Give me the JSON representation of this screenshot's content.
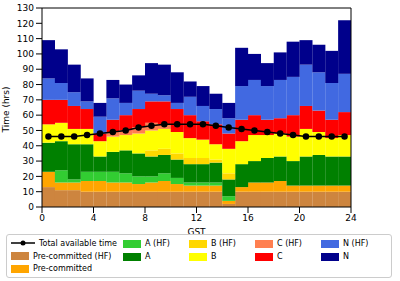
{
  "chart_data": {
    "type": "bar",
    "stacked": true,
    "x_label": "GST",
    "y_label": "Time (hrs)",
    "xlim": [
      0,
      24
    ],
    "xticks": [
      0,
      4,
      8,
      12,
      16,
      20,
      24
    ],
    "ylim": [
      0,
      130
    ],
    "yticks": [
      0,
      10,
      20,
      30,
      40,
      50,
      60,
      70,
      80,
      90,
      100,
      110,
      120,
      130
    ],
    "grid": false,
    "legend": "bottom",
    "x": [
      0.5,
      1.5,
      2.5,
      3.5,
      4.5,
      5.5,
      6.5,
      7.5,
      8.5,
      9.5,
      10.5,
      11.5,
      12.5,
      13.5,
      14.5,
      15.5,
      16.5,
      17.5,
      18.5,
      19.5,
      20.5,
      21.5,
      22.5,
      23.5
    ],
    "series": [
      {
        "name": "Total available time",
        "type": "line",
        "marker": "circle",
        "color": "#000000",
        "values": [
          46,
          46,
          46,
          47,
          48,
          49,
          50,
          52,
          53,
          54,
          54,
          54,
          54,
          53,
          52,
          51,
          50,
          49,
          48,
          47,
          46,
          46,
          46,
          46
        ]
      },
      {
        "name": "Pre-committed (HF)",
        "type": "bar",
        "color": "#cd853f",
        "values": [
          13,
          11,
          11,
          10,
          10,
          10,
          10,
          10,
          10,
          10,
          10,
          10,
          10,
          10,
          2,
          10,
          10,
          10,
          10,
          10,
          10,
          10,
          10,
          10
        ]
      },
      {
        "name": "Pre-committed",
        "type": "bar",
        "color": "#ffa500",
        "values": [
          10,
          5,
          5,
          7,
          7,
          6,
          6,
          5,
          6,
          7,
          5,
          4,
          4,
          4,
          2,
          3,
          6,
          6,
          7,
          4,
          4,
          4,
          4,
          4
        ]
      },
      {
        "name": "A (HF)",
        "type": "bar",
        "color": "#32cd32",
        "values": [
          0,
          8,
          2,
          6,
          6,
          7,
          6,
          5,
          4,
          5,
          4,
          2,
          2,
          2,
          3,
          0,
          0,
          0,
          0,
          0,
          0,
          0,
          0,
          0
        ]
      },
      {
        "name": "A",
        "type": "bar",
        "color": "#008000",
        "values": [
          19,
          19,
          23,
          18,
          10,
          13,
          15,
          15,
          13,
          12,
          12,
          12,
          12,
          13,
          11,
          15,
          14,
          16,
          16,
          16,
          19,
          20,
          19,
          19
        ]
      },
      {
        "name": "B (HF)",
        "type": "bar",
        "color": "#ffd700",
        "values": [
          0,
          0,
          0,
          0,
          0,
          0,
          0,
          0,
          4,
          4,
          4,
          4,
          4,
          2,
          4,
          0,
          0,
          0,
          0,
          0,
          0,
          0,
          0,
          0
        ]
      },
      {
        "name": "B",
        "type": "bar",
        "color": "#ffff00",
        "values": [
          12,
          12,
          10,
          10,
          10,
          10,
          10,
          13,
          13,
          13,
          14,
          13,
          12,
          10,
          16,
          15,
          17,
          15,
          15,
          16,
          18,
          15,
          12,
          14
        ]
      },
      {
        "name": "C (HF)",
        "type": "bar",
        "color": "#ff7f50",
        "values": [
          0,
          0,
          0,
          0,
          0,
          3,
          3,
          4,
          5,
          3,
          0,
          0,
          0,
          0,
          0,
          0,
          0,
          0,
          0,
          0,
          0,
          0,
          0,
          0
        ]
      },
      {
        "name": "C",
        "type": "bar",
        "color": "#ff0000",
        "values": [
          16,
          15,
          15,
          13,
          5,
          8,
          10,
          12,
          14,
          15,
          15,
          15,
          12,
          13,
          10,
          14,
          13,
          10,
          10,
          14,
          15,
          14,
          12,
          15
        ]
      },
      {
        "name": "N (HF)",
        "type": "bar",
        "color": "#4169e1",
        "values": [
          14,
          11,
          9,
          5,
          11,
          14,
          8,
          12,
          5,
          4,
          4,
          12,
          10,
          10,
          10,
          22,
          23,
          22,
          25,
          25,
          27,
          25,
          24,
          25
        ]
      },
      {
        "name": "N",
        "type": "bar",
        "color": "#00008b",
        "values": [
          25,
          22,
          18,
          15,
          9,
          12,
          12,
          10,
          20,
          20,
          20,
          10,
          13,
          10,
          10,
          25,
          17,
          15,
          18,
          23,
          16,
          18,
          21,
          35
        ]
      }
    ]
  }
}
